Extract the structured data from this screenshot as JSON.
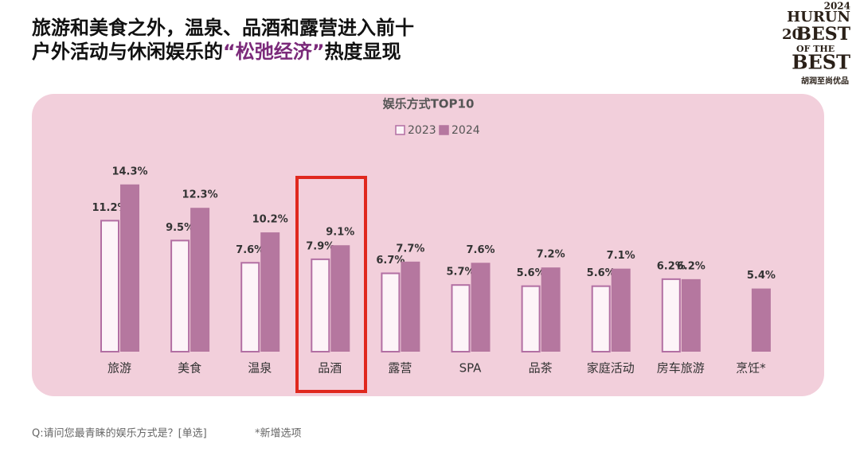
{
  "headline": {
    "line1": "旅游和美食之外，温泉、品酒和露营进入前十",
    "line2": [
      "户外活动与休闲娱乐的",
      "“松弛经济”",
      "热度显现"
    ]
  },
  "logo": {
    "year": "2024",
    "brand": "HURUN",
    "num": "20",
    "best1": "BEST",
    "of_the": "OF THE",
    "best2": "BEST",
    "cn": "胡润至尚优品"
  },
  "chart_data": {
    "type": "bar",
    "title": "娱乐方式TOP10",
    "categories": [
      "旅游",
      "美食",
      "温泉",
      "品酒",
      "露营",
      "SPA",
      "品茶",
      "家庭活动",
      "房车旅游",
      "烹饪*"
    ],
    "series": [
      {
        "name": "2023",
        "color": "#b26fa3",
        "values": [
          11.2,
          9.5,
          7.6,
          7.9,
          6.7,
          5.7,
          5.6,
          5.6,
          6.2,
          null
        ],
        "value_labels": [
          "11.2%",
          "9.5%",
          "7.6%",
          "7.9%",
          "6.7%",
          "5.7%",
          "5.6%",
          "5.6%",
          "6.2%",
          null
        ]
      },
      {
        "name": "2024",
        "color": "#b5779f",
        "values": [
          14.3,
          12.3,
          10.2,
          9.1,
          7.7,
          7.6,
          7.2,
          7.1,
          6.2,
          5.4
        ],
        "value_labels": [
          "14.3%",
          "12.3%",
          "10.2%",
          "9.1%",
          "7.7%",
          "7.6%",
          "7.2%",
          "7.1%",
          "6.2%",
          "5.4%"
        ]
      }
    ]
  },
  "footer": {
    "question": "Q:请问您最青睐的娱乐方式是？[单选]",
    "note": "*新增选项"
  }
}
